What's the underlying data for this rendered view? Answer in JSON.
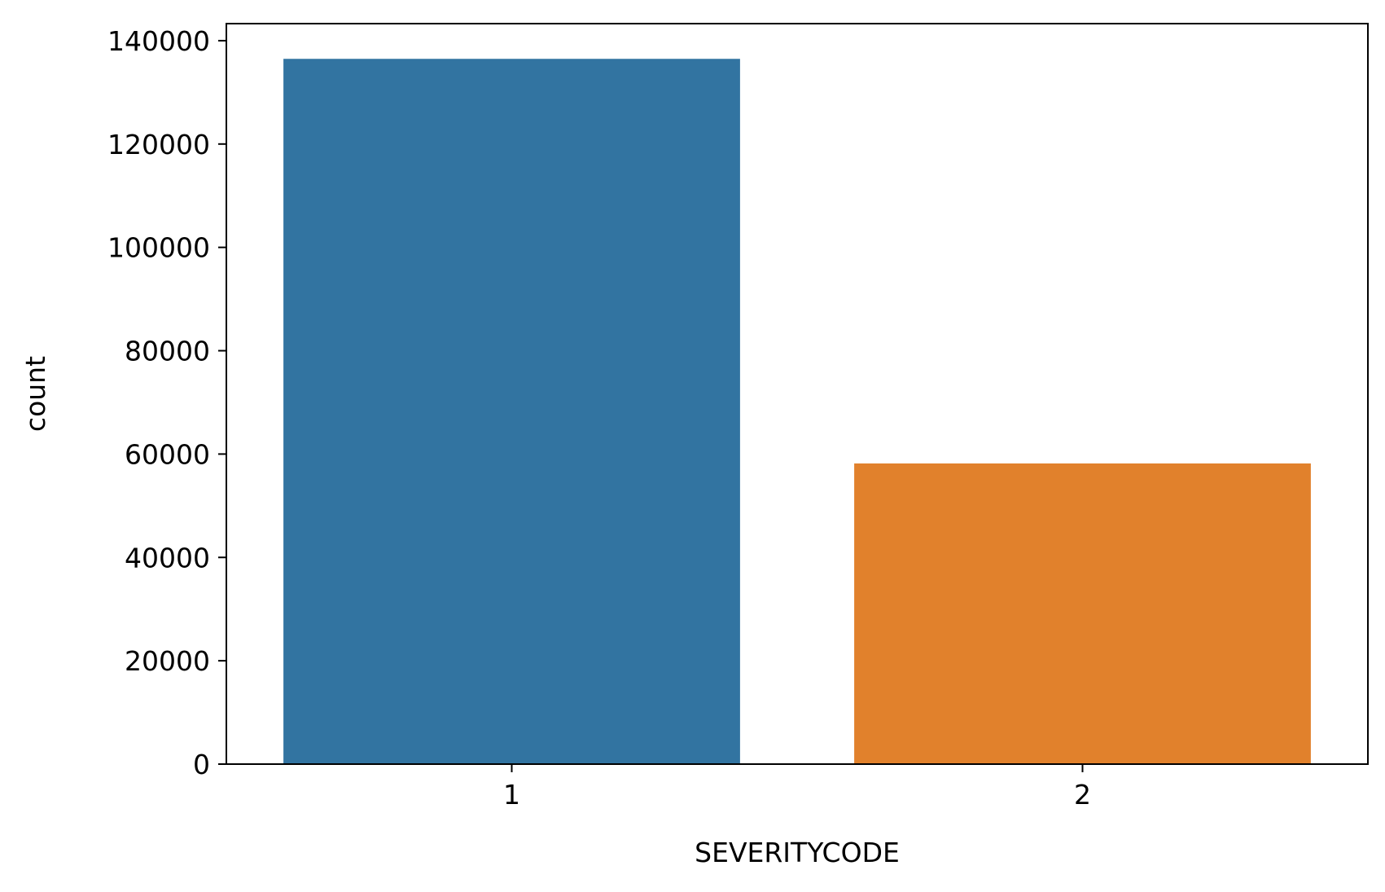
{
  "chart_data": {
    "type": "bar",
    "title": "",
    "xlabel": "SEVERITYCODE",
    "ylabel": "count",
    "categories": [
      "1",
      "2"
    ],
    "values": [
      136485,
      58188
    ],
    "colors": [
      "#3274a1",
      "#e1812c"
    ],
    "ylim": [
      0,
      143300
    ],
    "yticks": [
      0,
      20000,
      40000,
      60000,
      80000,
      100000,
      120000,
      140000
    ],
    "grid": false,
    "legend": "none"
  }
}
